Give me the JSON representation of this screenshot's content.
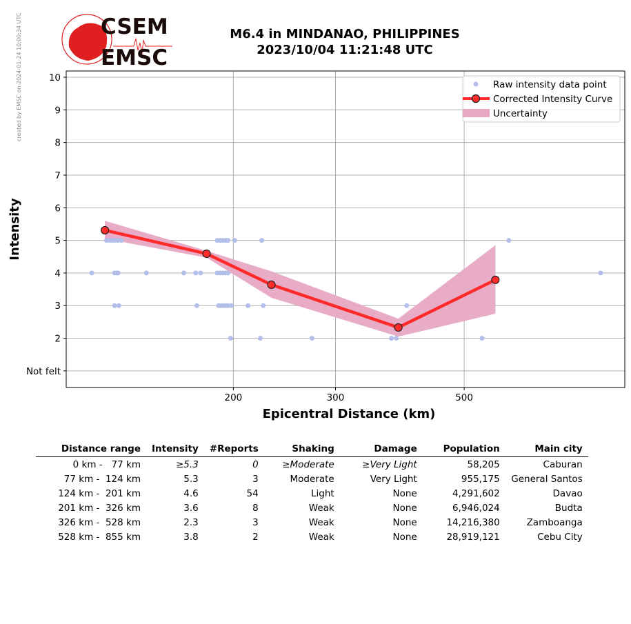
{
  "watermark": "created by EMSC on 2024-01-24 10:00:34 UTC",
  "logo": {
    "line1": "CSEM",
    "line2": "EMSC"
  },
  "title": {
    "line1": "M6.4 in MINDANAO, PHILIPPINES",
    "line2": "2023/10/04 11:21:48 UTC"
  },
  "colors": {
    "raw": "#b3bfea",
    "curve": "#ff2a2a",
    "band": "#e8a8c4",
    "grid": "#b0b0b0"
  },
  "chart_data": {
    "type": "line",
    "xlabel": "Epicentral Distance (km)",
    "ylabel": "Intensity",
    "xscale": "log",
    "xlim": [
      103,
      946
    ],
    "ylim": [
      0.49,
      10.19
    ],
    "xticks": [
      200,
      300,
      500
    ],
    "xtick_labels": [
      "200",
      "300",
      "500"
    ],
    "yticks": [
      1,
      2,
      3,
      4,
      5,
      6,
      7,
      8,
      9,
      10
    ],
    "ytick_labels": [
      "Not felt",
      "2",
      "3",
      "4",
      "5",
      "6",
      "7",
      "8",
      "9",
      "10"
    ],
    "grid": true,
    "legend_position": "top-right",
    "legend": [
      "Raw intensity data point",
      "Corrected Intensity Curve",
      "Uncertainty"
    ],
    "raw_points": [
      [
        120.8,
        5
      ],
      [
        122.4,
        5
      ],
      [
        123.4,
        5
      ],
      [
        124.8,
        5
      ],
      [
        126.5,
        5
      ],
      [
        128.2,
        5
      ],
      [
        187.6,
        5
      ],
      [
        189.7,
        5
      ],
      [
        191.9,
        5
      ],
      [
        194.0,
        5
      ],
      [
        195.7,
        5
      ],
      [
        201.1,
        5
      ],
      [
        223.9,
        5
      ],
      [
        597,
        5
      ],
      [
        114,
        4
      ],
      [
        124.8,
        4
      ],
      [
        125.9,
        4
      ],
      [
        126.5,
        4
      ],
      [
        141.6,
        4
      ],
      [
        164.3,
        4
      ],
      [
        172.2,
        4
      ],
      [
        175.6,
        4
      ],
      [
        187.6,
        4
      ],
      [
        189.7,
        4
      ],
      [
        191.9,
        4
      ],
      [
        194.0,
        4
      ],
      [
        195.7,
        4
      ],
      [
        859.6,
        4
      ],
      [
        124.8,
        3
      ],
      [
        126.9,
        3
      ],
      [
        173,
        3
      ],
      [
        188.6,
        3
      ],
      [
        190.5,
        3
      ],
      [
        192.5,
        3
      ],
      [
        194.5,
        3
      ],
      [
        195.7,
        3
      ],
      [
        198.4,
        3
      ],
      [
        212,
        3
      ],
      [
        225.2,
        3
      ],
      [
        398,
        3
      ],
      [
        197.8,
        2
      ],
      [
        222.6,
        2
      ],
      [
        273.3,
        2
      ],
      [
        374.7,
        2
      ],
      [
        381.9,
        2
      ],
      [
        536.6,
        2
      ]
    ],
    "curve": {
      "x": [
        120.1,
        179.8,
        232.6,
        385,
        566
      ],
      "y": [
        5.31,
        4.59,
        3.64,
        2.33,
        3.79
      ]
    },
    "uncertainty": {
      "x": [
        120.1,
        179.8,
        232.6,
        385,
        566
      ],
      "upper": [
        5.6,
        4.68,
        4.05,
        2.6,
        4.85
      ],
      "lower": [
        5.05,
        4.47,
        3.24,
        2.05,
        2.75
      ]
    }
  },
  "table": {
    "headers": [
      "Distance range",
      "Intensity",
      "#Reports",
      "Shaking",
      "Damage",
      "Population",
      "Main city"
    ],
    "rows": [
      [
        "0 km -   77 km",
        "≥5.3",
        "0",
        "≥Moderate",
        "≥Very Light",
        "58,205",
        "Caburan"
      ],
      [
        "77 km -  124 km",
        "5.3",
        "3",
        "Moderate",
        "Very Light",
        "955,175",
        "General Santos"
      ],
      [
        "124 km -  201 km",
        "4.6",
        "54",
        "Light",
        "None",
        "4,291,602",
        "Davao"
      ],
      [
        "201 km -  326 km",
        "3.6",
        "8",
        "Weak",
        "None",
        "6,946,024",
        "Budta"
      ],
      [
        "326 km -  528 km",
        "2.3",
        "3",
        "Weak",
        "None",
        "14,216,380",
        "Zamboanga"
      ],
      [
        "528 km -  855 km",
        "3.8",
        "2",
        "Weak",
        "None",
        "28,919,121",
        "Cebu City"
      ]
    ]
  }
}
